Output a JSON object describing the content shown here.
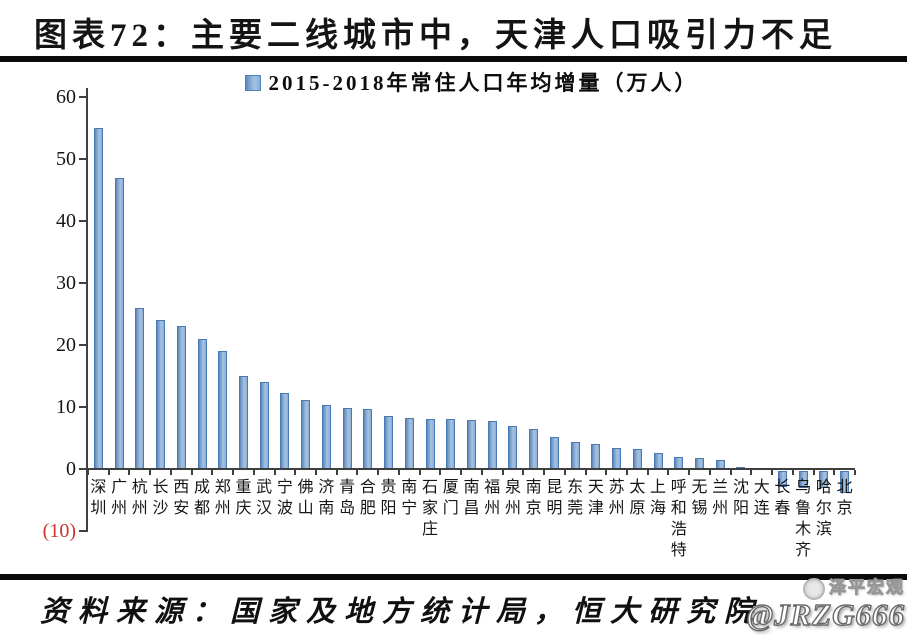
{
  "title": "图表72：主要二线城市中，天津人口吸引力不足",
  "legend": {
    "label": "2015-2018年常住人口年均增量（万人）"
  },
  "source": "资料来源：国家及地方统计局，恒大研究院",
  "watermark": {
    "brand": "泽平宏观",
    "handle": "@JRZG666"
  },
  "colors": {
    "bar_fill": "#8EAFD6",
    "bar_border": "#4F81BD",
    "axis": "#3F3F3F",
    "negative_tick_label": "#CC3333",
    "rule": "#0A0A0A"
  },
  "chart_data": {
    "type": "bar",
    "title": "2015-2018年常住人口年均增量（万人）",
    "categories": [
      "深圳",
      "广州",
      "杭州",
      "长沙",
      "西安",
      "成都",
      "郑州",
      "重庆",
      "武汉",
      "宁波",
      "佛山",
      "济南",
      "青岛",
      "合肥",
      "贵阳",
      "南宁",
      "石家庄",
      "厦门",
      "南昌",
      "福州",
      "泉州",
      "南京",
      "昆明",
      "东莞",
      "天津",
      "苏州",
      "太原",
      "上海",
      "呼和浩特",
      "无锡",
      "兰州",
      "沈阳",
      "大连",
      "长春",
      "乌鲁木齐",
      "哈尔滨",
      "北京"
    ],
    "values": [
      55,
      47,
      26,
      24,
      23,
      21,
      19,
      15,
      14,
      12.2,
      11.2,
      10.4,
      9.8,
      9.7,
      8.6,
      8.2,
      8.1,
      8.0,
      7.9,
      7.7,
      6.9,
      6.5,
      5.2,
      4.3,
      4.1,
      3.4,
      3.3,
      2.6,
      2.0,
      1.8,
      1.5,
      0.3,
      0.1,
      -2.6,
      -2.7,
      -2.7,
      -3.5
    ],
    "xlabel": "",
    "ylabel": "",
    "ylim": [
      -10,
      61
    ],
    "yticks": [
      60,
      50,
      40,
      30,
      20,
      10,
      0,
      -10
    ],
    "ytick_labels": [
      "60",
      "50",
      "40",
      "30",
      "20",
      "10",
      "0",
      "(10)"
    ],
    "grid": false,
    "legend_position": "top-center"
  }
}
